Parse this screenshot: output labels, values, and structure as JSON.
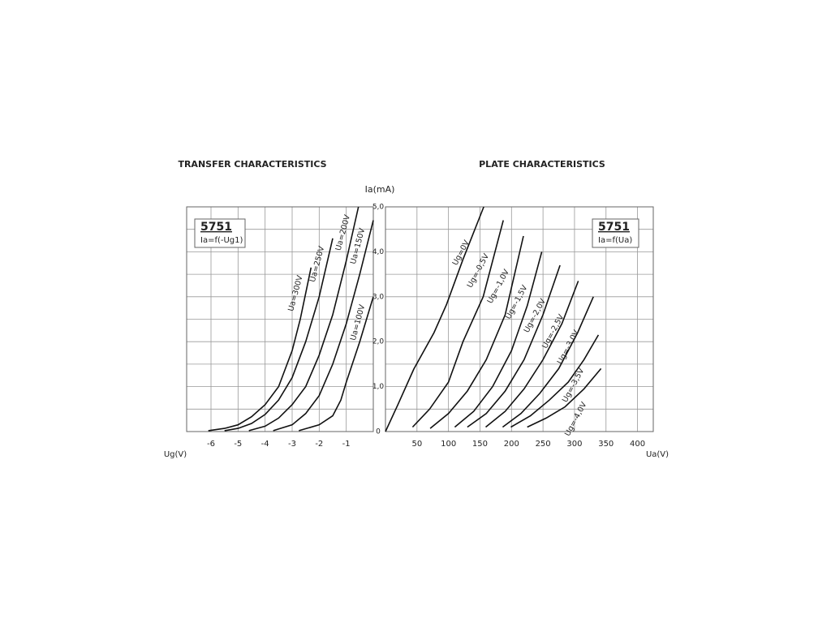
{
  "chart_data": [
    {
      "type": "line",
      "title": "TRANSFER CHARACTERISTICS",
      "xlabel": "Ug(V)",
      "annotations": [
        "5751",
        "Ia=f(-Ug1)"
      ],
      "xlim": [
        -6.9,
        0
      ],
      "xticks": [
        -6,
        -5,
        -4,
        -3,
        -2,
        -1
      ],
      "ylim": [
        0,
        5
      ],
      "yticks": [
        0,
        {
          "value": 1,
          "label": "1,0"
        },
        {
          "value": 2,
          "label": "2,0"
        },
        {
          "value": 3,
          "label": "3,0"
        },
        {
          "value": 4,
          "label": "4,0"
        },
        {
          "value": 5,
          "label": "5,0"
        }
      ],
      "minor_yticks": [
        0.5,
        1.5,
        2.5,
        3.5,
        4.5
      ],
      "ytick_labels": false,
      "grid": true,
      "color": "#111111",
      "series": [
        {
          "name": "Ua=300V",
          "x": [
            -6.1,
            -5.5,
            -5.0,
            -4.5,
            -4.0,
            -3.5,
            -3.0,
            -2.7,
            -2.3
          ],
          "values": [
            0.02,
            0.07,
            0.15,
            0.33,
            0.6,
            1.0,
            1.8,
            2.5,
            3.65
          ]
        },
        {
          "name": "Ua=250V",
          "x": [
            -5.5,
            -5.0,
            -4.5,
            -4.0,
            -3.5,
            -3.0,
            -2.5,
            -2.0,
            -1.5
          ],
          "values": [
            0.02,
            0.07,
            0.18,
            0.38,
            0.7,
            1.2,
            2.0,
            3.0,
            4.3
          ]
        },
        {
          "name": "Ua=200V",
          "x": [
            -4.6,
            -4.0,
            -3.5,
            -3.0,
            -2.5,
            -2.0,
            -1.5,
            -1.0,
            -0.55
          ],
          "values": [
            0.02,
            0.12,
            0.3,
            0.6,
            1.0,
            1.7,
            2.6,
            3.8,
            5.0
          ]
        },
        {
          "name": "Ua=150V",
          "x": [
            -3.7,
            -3.0,
            -2.5,
            -2.0,
            -1.5,
            -1.0,
            -0.5,
            0
          ],
          "values": [
            0.02,
            0.15,
            0.4,
            0.8,
            1.5,
            2.4,
            3.5,
            4.7
          ]
        },
        {
          "name": "Ua=100V",
          "x": [
            -2.75,
            -2.0,
            -1.5,
            -1.2,
            -1.0,
            -0.5,
            0
          ],
          "values": [
            0.02,
            0.15,
            0.35,
            0.7,
            1.1,
            2.0,
            3.0
          ]
        }
      ]
    },
    {
      "type": "line",
      "title": "PLATE CHARACTERISTICS",
      "xlabel": "Ua(V)",
      "ylabel": "Ia(mA)",
      "annotations": [
        "5751",
        "Ia=f(Ua)"
      ],
      "xlim": [
        0,
        425
      ],
      "xticks": [
        50,
        100,
        150,
        200,
        250,
        300,
        350,
        400
      ],
      "ylim": [
        0,
        5
      ],
      "yticks": [
        0,
        {
          "value": 1,
          "label": "1,0"
        },
        {
          "value": 2,
          "label": "2,0"
        },
        {
          "value": 3,
          "label": "3,0"
        },
        {
          "value": 4,
          "label": "4,0"
        },
        {
          "value": 5,
          "label": "5,0"
        }
      ],
      "minor_yticks": [
        0.5,
        1.5,
        2.5,
        3.5,
        4.5
      ],
      "ytick_labels": true,
      "grid": true,
      "color": "#111111",
      "series": [
        {
          "name": "Ug=0V",
          "x": [
            0,
            19,
            45,
            77,
            97,
            123,
            156
          ],
          "values": [
            0,
            0.58,
            1.39,
            2.2,
            2.83,
            3.83,
            5.0
          ]
        },
        {
          "name": "Ug=-0,5V",
          "x": [
            43,
            70,
            100,
            123,
            155,
            187
          ],
          "values": [
            0.1,
            0.5,
            1.1,
            2.0,
            3.0,
            4.7
          ]
        },
        {
          "name": "Ug=-1,0V",
          "x": [
            71,
            100,
            130,
            160,
            190,
            219
          ],
          "values": [
            0.07,
            0.4,
            0.9,
            1.6,
            2.6,
            4.35
          ]
        },
        {
          "name": "Ug=-1,5V",
          "x": [
            110,
            140,
            170,
            200,
            225,
            248
          ],
          "values": [
            0.1,
            0.45,
            1.0,
            1.8,
            2.8,
            4.0
          ]
        },
        {
          "name": "Ug=-2,0V",
          "x": [
            130,
            160,
            190,
            220,
            250,
            277
          ],
          "values": [
            0.1,
            0.4,
            0.9,
            1.6,
            2.6,
            3.7
          ]
        },
        {
          "name": "Ug=-2,5V",
          "x": [
            159,
            190,
            220,
            250,
            280,
            306
          ],
          "values": [
            0.1,
            0.45,
            0.95,
            1.6,
            2.4,
            3.35
          ]
        },
        {
          "name": "Ug=-3,0V",
          "x": [
            186,
            215,
            245,
            275,
            305,
            330
          ],
          "values": [
            0.1,
            0.4,
            0.85,
            1.4,
            2.2,
            3.0
          ]
        },
        {
          "name": "Ug=-3,5V",
          "x": [
            199,
            230,
            260,
            290,
            315,
            338
          ],
          "values": [
            0.1,
            0.35,
            0.7,
            1.1,
            1.6,
            2.15
          ]
        },
        {
          "name": "Ug=-4,0V",
          "x": [
            225,
            255,
            285,
            315,
            342
          ],
          "values": [
            0.1,
            0.3,
            0.55,
            0.95,
            1.4
          ]
        }
      ]
    }
  ]
}
